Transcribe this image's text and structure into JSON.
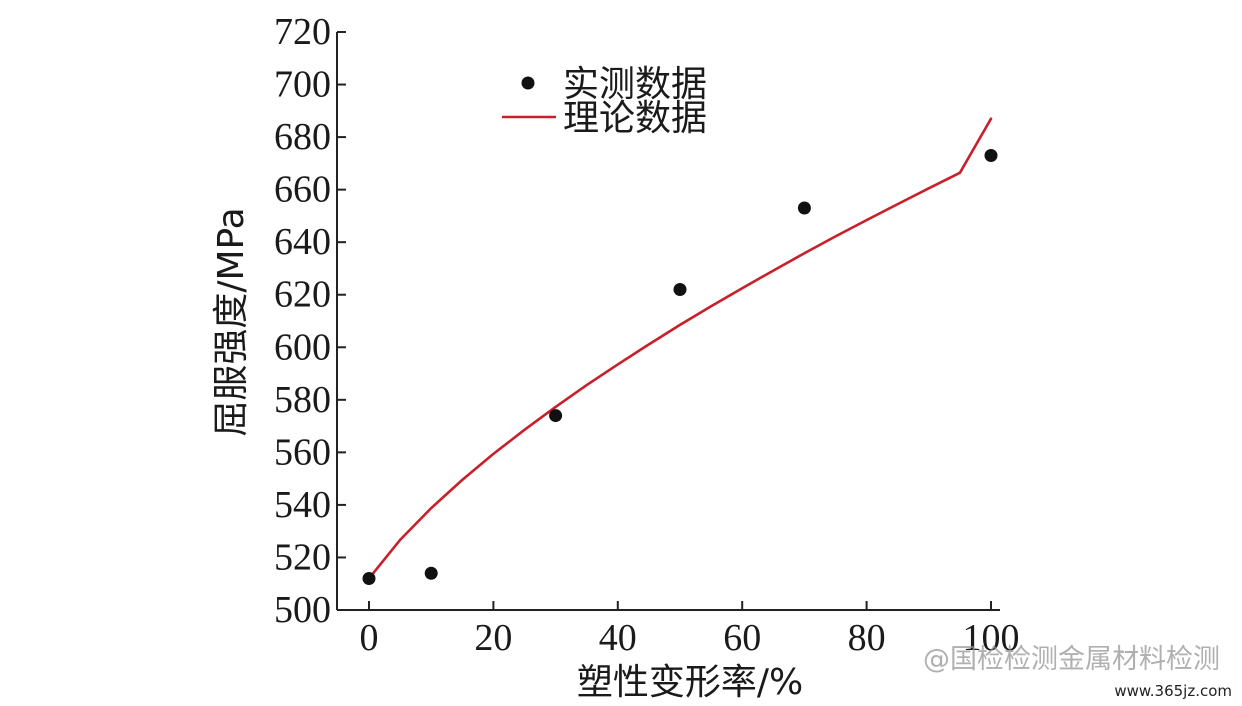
{
  "chart_data": {
    "type": "scatter",
    "xlabel": "塑性变形率/%",
    "ylabel": "屈服强度/MPa",
    "xlim": [
      -5,
      102
    ],
    "ylim": [
      500,
      720
    ],
    "x_ticks": [
      0,
      20,
      40,
      60,
      80,
      100
    ],
    "y_ticks": [
      500,
      520,
      540,
      560,
      580,
      600,
      620,
      640,
      660,
      680,
      700,
      720
    ],
    "grid": false,
    "legend_position": "top-left",
    "series": [
      {
        "name": "实测数据",
        "kind": "scatter",
        "color": "#111111",
        "x": [
          0,
          10,
          30,
          50,
          70,
          100
        ],
        "y": [
          512,
          514,
          574,
          622,
          653,
          673
        ]
      },
      {
        "name": "理论数据",
        "kind": "line",
        "color": "#c8202a",
        "x": [
          0,
          5,
          10,
          15,
          20,
          25,
          30,
          35,
          40,
          45,
          50,
          55,
          60,
          65,
          70,
          75,
          80,
          85,
          90,
          95,
          100
        ],
        "y": [
          512,
          526.7,
          538.8,
          549.5,
          559.4,
          568.6,
          577.3,
          585.6,
          593.5,
          601.1,
          608.5,
          615.6,
          622.5,
          629.2,
          635.8,
          642.2,
          648.4,
          654.5,
          660.5,
          666.4,
          687
        ]
      }
    ]
  },
  "watermark": {
    "text": "@国检检测金属材料检测",
    "url": "www.365jz.com"
  }
}
